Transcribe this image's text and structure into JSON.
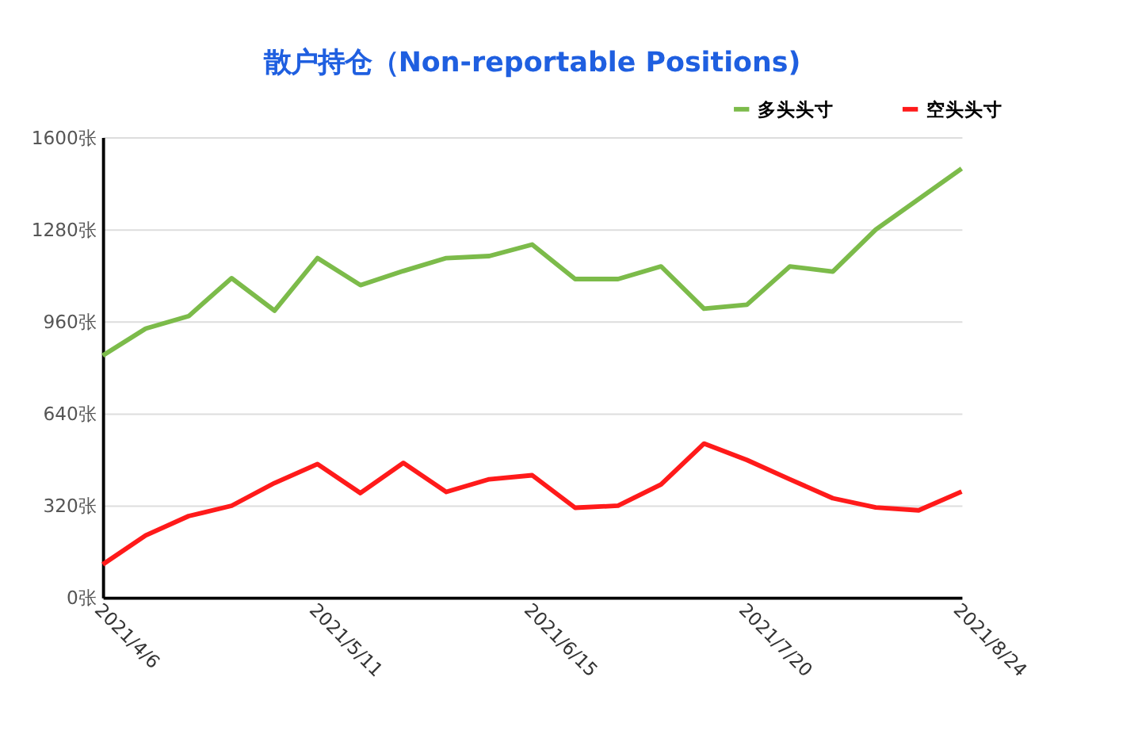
{
  "chart_data": {
    "type": "line",
    "title": "散户持仓（Non-reportable Positions)",
    "x": [
      "2021-04-06",
      "2021-04-13",
      "2021-04-20",
      "2021-04-27",
      "2021-05-04",
      "2021-05-11",
      "2021-05-18",
      "2021-05-25",
      "2021-06-01",
      "2021-06-08",
      "2021-06-15",
      "2021-06-22",
      "2021-06-29",
      "2021-07-06",
      "2021-07-13",
      "2021-07-20",
      "2021-07-27",
      "2021-08-03",
      "2021-08-10",
      "2021-08-17",
      "2021-08-24"
    ],
    "series": [
      {
        "name": "多头头寸",
        "color": "#7cbb4a",
        "values": [
          841,
          935,
          978,
          1110,
          997,
          1180,
          1086,
          1135,
          1180,
          1187,
          1227,
          1107,
          1107,
          1151,
          1004,
          1018,
          1151,
          1133,
          1279,
          1385,
          1491
        ]
      },
      {
        "name": "空头头寸",
        "color": "#ff1a1a",
        "values": [
          115,
          216,
          283,
          319,
          398,
          464,
          363,
          468,
          367,
          411,
          425,
          312,
          319,
          393,
          535,
          478,
          411,
          345,
          313,
          303,
          368
        ]
      }
    ],
    "xlim": [
      "2021-04-06",
      "2021-08-24"
    ],
    "xticks": [
      {
        "value": "2021-04-06",
        "label": "2021/4/6"
      },
      {
        "value": "2021-05-11",
        "label": "2021/5/11"
      },
      {
        "value": "2021-06-15",
        "label": "2021/6/15"
      },
      {
        "value": "2021-07-20",
        "label": "2021/7/20"
      },
      {
        "value": "2021-08-24",
        "label": "2021/8/24"
      }
    ],
    "ylim": [
      0,
      1600
    ],
    "yticks": [
      {
        "value": 0,
        "label": "0张"
      },
      {
        "value": 320,
        "label": "320张"
      },
      {
        "value": 640,
        "label": "640张"
      },
      {
        "value": 960,
        "label": "960张"
      },
      {
        "value": 1280,
        "label": "1280张"
      },
      {
        "value": 1600,
        "label": "1600张"
      }
    ],
    "grid": "y",
    "legend": "top right",
    "marker": "none",
    "line_style": "solid"
  }
}
